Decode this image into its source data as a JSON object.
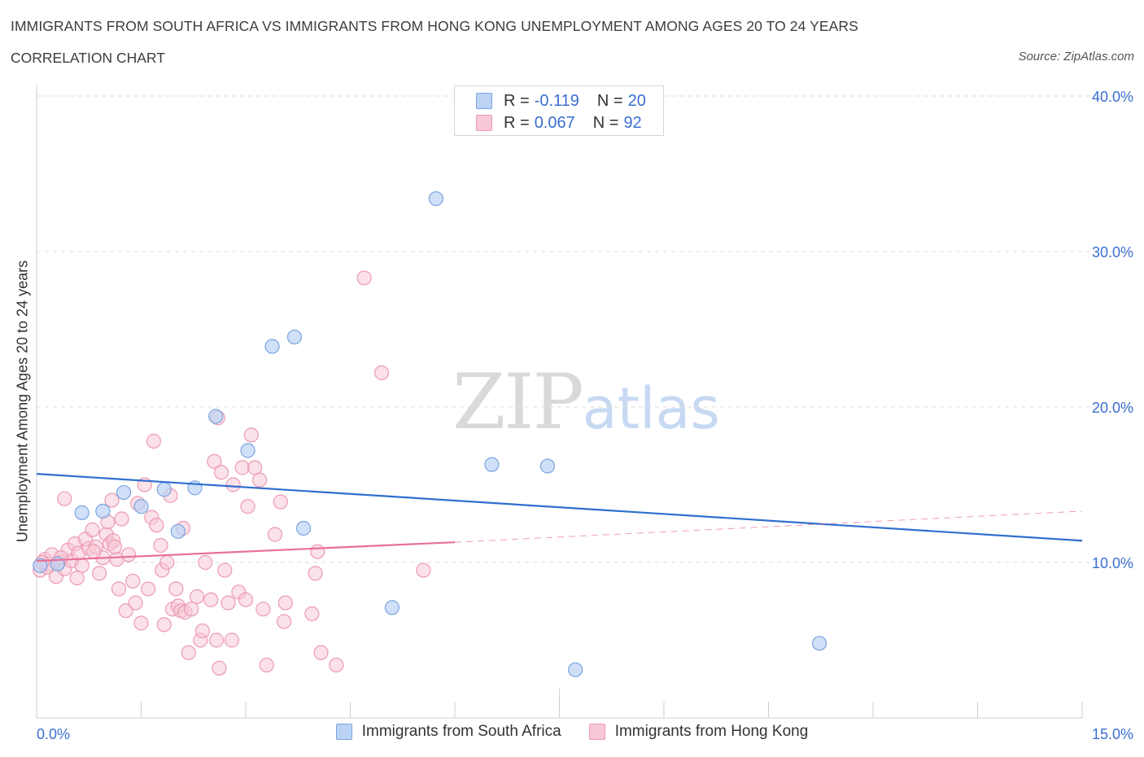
{
  "header": {
    "title": "IMMIGRANTS FROM SOUTH AFRICA VS IMMIGRANTS FROM HONG KONG UNEMPLOYMENT AMONG AGES 20 TO 24 YEARS",
    "subtitle": "CORRELATION CHART",
    "source": "Source: ZipAtlas.com"
  },
  "watermark": {
    "zip": "ZIP",
    "atlas": "atlas"
  },
  "legend_top": {
    "rows": [
      {
        "r_label": "R =",
        "r_value": "-0.119",
        "n_label": "N =",
        "n_value": "20"
      },
      {
        "r_label": "R =",
        "r_value": "0.067",
        "n_label": "N =",
        "n_value": "92"
      }
    ]
  },
  "legend_bottom": [
    {
      "label": "Immigrants from South Africa"
    },
    {
      "label": "Immigrants from Hong Kong"
    }
  ],
  "colors": {
    "south_africa_fill": "#bcd3f5",
    "south_africa_stroke": "#7ba4e0",
    "south_africa_line": "#2e6fcf",
    "hong_kong_fill": "#f8c8d6",
    "hong_kong_stroke": "#ec9ab3",
    "hong_kong_line": "#e8709a",
    "tick_label": "#3a6fd1"
  },
  "chart_data": {
    "type": "scatter",
    "title": "IMMIGRANTS FROM SOUTH AFRICA VS IMMIGRANTS FROM HONG KONG UNEMPLOYMENT AMONG AGES 20 TO 24 YEARS",
    "xlabel": "",
    "ylabel": "Unemployment Among Ages 20 to 24 years",
    "xlim": [
      0,
      15
    ],
    "ylim": [
      0,
      40
    ],
    "x_tick_labels": [
      "0.0%",
      "15.0%"
    ],
    "y_tick_labels": [
      "10.0%",
      "20.0%",
      "30.0%",
      "40.0%"
    ],
    "y_ticks": [
      10,
      20,
      30,
      40
    ],
    "grid": true,
    "legend_position": "top-center",
    "series": [
      {
        "name": "Immigrants from South Africa",
        "r": -0.119,
        "n": 20,
        "trend": {
          "x": [
            0,
            15
          ],
          "y": [
            15.7,
            11.4
          ]
        },
        "points": [
          {
            "x": 0.05,
            "y": 9.8
          },
          {
            "x": 0.3,
            "y": 9.9
          },
          {
            "x": 0.65,
            "y": 13.2
          },
          {
            "x": 0.95,
            "y": 13.3
          },
          {
            "x": 1.25,
            "y": 14.5
          },
          {
            "x": 1.5,
            "y": 13.6
          },
          {
            "x": 1.83,
            "y": 14.7
          },
          {
            "x": 2.03,
            "y": 12.0
          },
          {
            "x": 2.27,
            "y": 14.8
          },
          {
            "x": 2.57,
            "y": 19.4
          },
          {
            "x": 3.03,
            "y": 17.2
          },
          {
            "x": 3.38,
            "y": 23.9
          },
          {
            "x": 3.7,
            "y": 24.5
          },
          {
            "x": 3.83,
            "y": 12.2
          },
          {
            "x": 5.1,
            "y": 7.1
          },
          {
            "x": 5.73,
            "y": 33.4
          },
          {
            "x": 6.53,
            "y": 16.3
          },
          {
            "x": 7.33,
            "y": 16.2
          },
          {
            "x": 7.73,
            "y": 3.1
          },
          {
            "x": 11.23,
            "y": 4.8
          }
        ]
      },
      {
        "name": "Immigrants from Hong Kong",
        "r": 0.067,
        "n": 92,
        "trend": {
          "x": [
            0,
            6.0
          ],
          "y": [
            10.1,
            11.3
          ]
        },
        "trend_extended": {
          "x": [
            6.0,
            15
          ],
          "y": [
            11.3,
            13.3
          ]
        },
        "points": [
          {
            "x": 0.05,
            "y": 9.5
          },
          {
            "x": 0.12,
            "y": 10.2
          },
          {
            "x": 0.18,
            "y": 9.9
          },
          {
            "x": 0.22,
            "y": 10.5
          },
          {
            "x": 0.28,
            "y": 9.1
          },
          {
            "x": 0.32,
            "y": 10.0
          },
          {
            "x": 0.4,
            "y": 9.6
          },
          {
            "x": 0.45,
            "y": 10.8
          },
          {
            "x": 0.5,
            "y": 10.1
          },
          {
            "x": 0.55,
            "y": 11.2
          },
          {
            "x": 0.6,
            "y": 10.6
          },
          {
            "x": 0.4,
            "y": 14.1
          },
          {
            "x": 0.65,
            "y": 9.8
          },
          {
            "x": 0.7,
            "y": 11.5
          },
          {
            "x": 0.75,
            "y": 10.9
          },
          {
            "x": 0.8,
            "y": 12.1
          },
          {
            "x": 0.85,
            "y": 11.0
          },
          {
            "x": 0.9,
            "y": 9.3
          },
          {
            "x": 0.95,
            "y": 10.3
          },
          {
            "x": 1.0,
            "y": 11.8
          },
          {
            "x": 1.02,
            "y": 12.6
          },
          {
            "x": 1.05,
            "y": 11.2
          },
          {
            "x": 1.08,
            "y": 14.0
          },
          {
            "x": 1.1,
            "y": 11.4
          },
          {
            "x": 1.15,
            "y": 10.2
          },
          {
            "x": 1.18,
            "y": 8.3
          },
          {
            "x": 1.22,
            "y": 12.8
          },
          {
            "x": 1.28,
            "y": 6.9
          },
          {
            "x": 1.32,
            "y": 10.5
          },
          {
            "x": 1.38,
            "y": 8.8
          },
          {
            "x": 1.42,
            "y": 7.4
          },
          {
            "x": 1.45,
            "y": 13.8
          },
          {
            "x": 1.5,
            "y": 6.1
          },
          {
            "x": 1.55,
            "y": 15.0
          },
          {
            "x": 1.6,
            "y": 8.3
          },
          {
            "x": 1.65,
            "y": 12.9
          },
          {
            "x": 1.68,
            "y": 17.8
          },
          {
            "x": 1.72,
            "y": 12.4
          },
          {
            "x": 1.78,
            "y": 11.1
          },
          {
            "x": 1.8,
            "y": 9.5
          },
          {
            "x": 1.83,
            "y": 6.0
          },
          {
            "x": 1.87,
            "y": 10.0
          },
          {
            "x": 1.92,
            "y": 14.3
          },
          {
            "x": 1.95,
            "y": 7.0
          },
          {
            "x": 2.0,
            "y": 8.3
          },
          {
            "x": 2.03,
            "y": 7.2
          },
          {
            "x": 2.07,
            "y": 6.9
          },
          {
            "x": 2.1,
            "y": 12.2
          },
          {
            "x": 2.13,
            "y": 6.8
          },
          {
            "x": 2.18,
            "y": 4.2
          },
          {
            "x": 2.22,
            "y": 7.0
          },
          {
            "x": 2.3,
            "y": 7.8
          },
          {
            "x": 2.35,
            "y": 5.0
          },
          {
            "x": 2.38,
            "y": 5.6
          },
          {
            "x": 2.42,
            "y": 10.0
          },
          {
            "x": 2.5,
            "y": 7.6
          },
          {
            "x": 2.55,
            "y": 16.5
          },
          {
            "x": 2.58,
            "y": 5.0
          },
          {
            "x": 2.6,
            "y": 19.3
          },
          {
            "x": 2.62,
            "y": 3.2
          },
          {
            "x": 2.65,
            "y": 15.8
          },
          {
            "x": 2.7,
            "y": 9.5
          },
          {
            "x": 2.75,
            "y": 7.4
          },
          {
            "x": 2.8,
            "y": 5.0
          },
          {
            "x": 2.82,
            "y": 15.0
          },
          {
            "x": 2.9,
            "y": 8.1
          },
          {
            "x": 2.95,
            "y": 16.1
          },
          {
            "x": 3.0,
            "y": 7.6
          },
          {
            "x": 3.03,
            "y": 13.6
          },
          {
            "x": 3.08,
            "y": 18.2
          },
          {
            "x": 3.13,
            "y": 16.1
          },
          {
            "x": 3.2,
            "y": 15.3
          },
          {
            "x": 3.25,
            "y": 7.0
          },
          {
            "x": 3.3,
            "y": 3.4
          },
          {
            "x": 3.42,
            "y": 11.8
          },
          {
            "x": 3.5,
            "y": 13.9
          },
          {
            "x": 3.55,
            "y": 6.2
          },
          {
            "x": 3.57,
            "y": 7.4
          },
          {
            "x": 3.95,
            "y": 6.7
          },
          {
            "x": 4.0,
            "y": 9.3
          },
          {
            "x": 4.03,
            "y": 10.7
          },
          {
            "x": 4.08,
            "y": 4.2
          },
          {
            "x": 4.3,
            "y": 3.4
          },
          {
            "x": 4.7,
            "y": 28.3
          },
          {
            "x": 4.95,
            "y": 22.2
          },
          {
            "x": 5.55,
            "y": 9.5
          },
          {
            "x": 0.15,
            "y": 9.7
          },
          {
            "x": 0.35,
            "y": 10.3
          },
          {
            "x": 0.58,
            "y": 9.0
          },
          {
            "x": 0.82,
            "y": 10.7
          },
          {
            "x": 1.12,
            "y": 11.0
          },
          {
            "x": 0.08,
            "y": 10.0
          }
        ]
      }
    ]
  }
}
